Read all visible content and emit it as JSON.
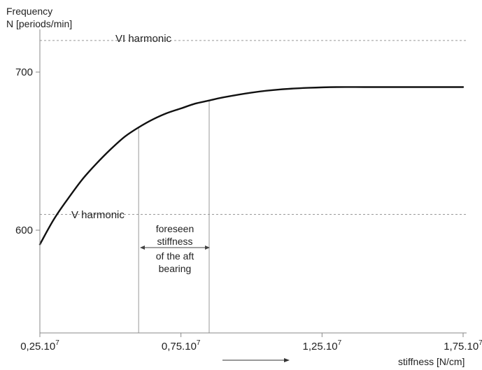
{
  "chart_data": {
    "type": "line",
    "ylabel_line1": "Frequency",
    "ylabel_line2": "N [periods/min]",
    "xlabel": "stiffness [N/cm]",
    "x_ticks": [
      {
        "value": 0.25,
        "base": "0,25.10",
        "exp": "7"
      },
      {
        "value": 0.75,
        "base": "0,75.10",
        "exp": "7"
      },
      {
        "value": 1.25,
        "base": "1,25.10",
        "exp": "7"
      },
      {
        "value": 1.75,
        "base": "1,75.10",
        "exp": "7"
      }
    ],
    "y_ticks": [
      {
        "value": 700,
        "label": "700"
      },
      {
        "value": 600,
        "label": "600"
      }
    ],
    "xlim": [
      0.25,
      1.75
    ],
    "ylim": [
      535,
      727
    ],
    "grid": false,
    "series": [
      {
        "x": [
          0.25,
          0.3,
          0.35,
          0.4,
          0.45,
          0.5,
          0.55,
          0.6,
          0.65,
          0.7,
          0.75,
          0.8,
          0.85,
          0.9,
          1.0,
          1.1,
          1.2,
          1.3,
          1.4,
          1.5,
          1.6,
          1.75
        ],
        "y": [
          591,
          607,
          620,
          632,
          642,
          651,
          659,
          665,
          670,
          674,
          677,
          680,
          682,
          684,
          687,
          689,
          690,
          690.5,
          690.5,
          690.5,
          690.5,
          690.5
        ]
      }
    ],
    "reference_lines": [
      {
        "y": 720,
        "label": "VI harmonic"
      },
      {
        "y": 610,
        "label": "V harmonic"
      }
    ],
    "vertical_markers": [
      0.6,
      0.85
    ],
    "annotation_lines": [
      "foreseen",
      "stiffness",
      "of the aft",
      "bearing"
    ]
  }
}
